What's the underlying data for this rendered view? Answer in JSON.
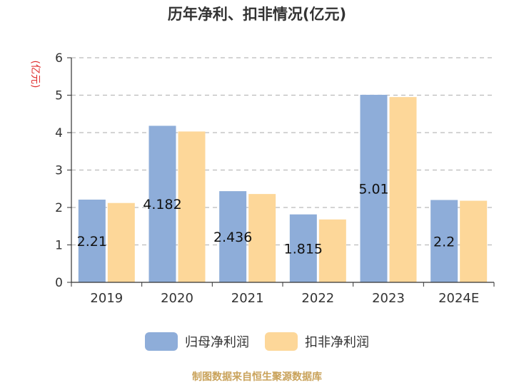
{
  "chart_data": {
    "type": "bar",
    "title": "历年净利、扣非情况(亿元)",
    "ylabel": "(亿元)",
    "xlabel": "",
    "categories": [
      "2019",
      "2020",
      "2021",
      "2022",
      "2023",
      "2024E"
    ],
    "ylim": [
      0,
      6
    ],
    "yticks": [
      0,
      1,
      2,
      3,
      4,
      5,
      6
    ],
    "grid": true,
    "legend_position": "bottom-center",
    "series": [
      {
        "name": "归母净利润",
        "color": "#8eadd9",
        "values": [
          2.21,
          4.182,
          2.436,
          1.815,
          5.01,
          2.2
        ],
        "labels": [
          "2.21",
          "4.182",
          "2.436",
          "1.815",
          "5.01",
          "2.2"
        ]
      },
      {
        "name": "扣非净利润",
        "color": "#fdd799",
        "values": [
          2.12,
          4.03,
          2.36,
          1.68,
          4.95,
          2.18
        ]
      }
    ]
  },
  "source_note": "制图数据来自恒生聚源数据库"
}
